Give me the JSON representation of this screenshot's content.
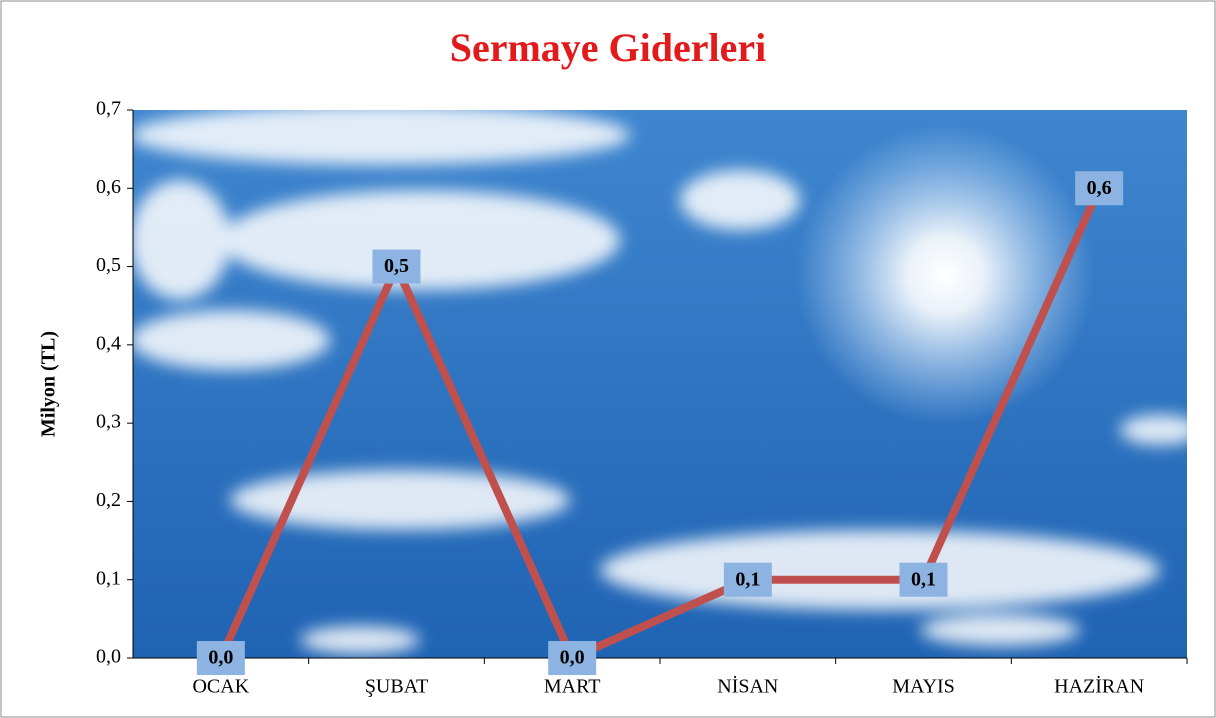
{
  "chart_data": {
    "type": "line",
    "title": "Sermaye Giderleri",
    "y_label": "Milyon (TL)",
    "categories": [
      "OCAK",
      "ŞUBAT",
      "MART",
      "NİSAN",
      "MAYIS",
      "HAZİRAN"
    ],
    "series": [
      {
        "name": "Sermaye Giderleri",
        "color": "#c0504d",
        "values": [
          0.0,
          0.5,
          0.0,
          0.1,
          0.1,
          0.6
        ],
        "value_labels": [
          "0,0",
          "0,5",
          "0,0",
          "0,1",
          "0,1",
          "0,6"
        ]
      }
    ],
    "ylim": [
      0,
      0.7
    ],
    "yticks": [
      {
        "value": 0,
        "label": "0,0"
      },
      {
        "value": 0.1,
        "label": "0,1"
      },
      {
        "value": 0.2,
        "label": "0,2"
      },
      {
        "value": 0.3,
        "label": "0,3"
      },
      {
        "value": 0.4,
        "label": "0,4"
      },
      {
        "value": 0.5,
        "label": "0,5"
      },
      {
        "value": 0.6,
        "label": "0,6"
      },
      {
        "value": 0.7,
        "label": "0,7"
      }
    ]
  }
}
